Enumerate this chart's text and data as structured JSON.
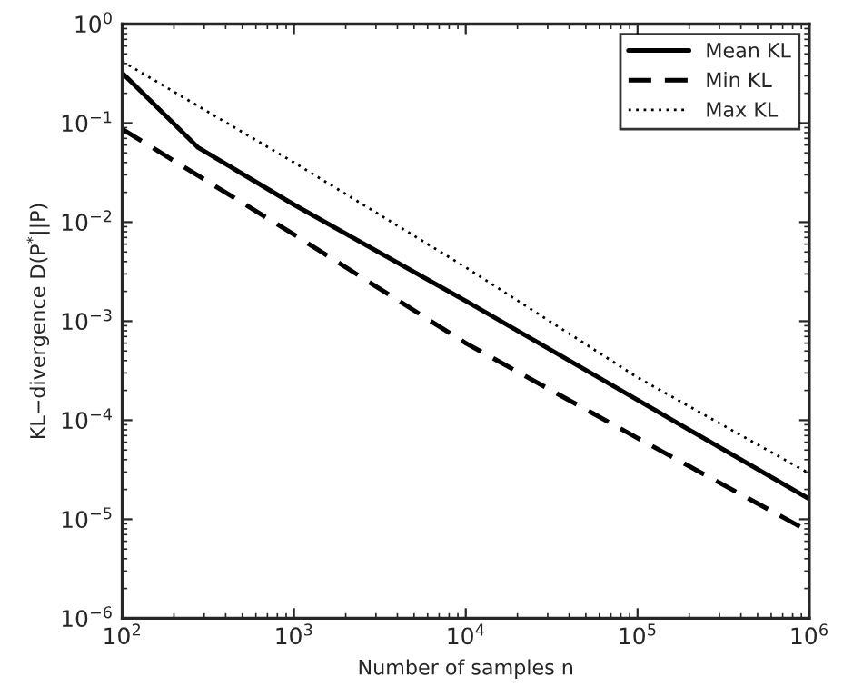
{
  "chart_data": {
    "type": "line",
    "xlabel": "Number of samples n",
    "ylabel": "KL−divergence D(P$^{*}$||P)",
    "log": "xy",
    "grid": false,
    "legend": "top right",
    "marker": "none",
    "xlim": [
      100,
      1000000
    ],
    "xticks": [
      {
        "value": 100,
        "label": "10$^{2}$"
      },
      {
        "value": 1000,
        "label": "10$^{3}$"
      },
      {
        "value": 10000,
        "label": "10$^{4}$"
      },
      {
        "value": 100000,
        "label": "10$^{5}$"
      },
      {
        "value": 1000000,
        "label": "10$^{6}$"
      }
    ],
    "ylim": [
      1e-06,
      1
    ],
    "yticks": [
      {
        "value": 1e-06,
        "label": "10$^{−6}$"
      },
      {
        "value": 1e-05,
        "label": "10$^{−5}$"
      },
      {
        "value": 0.0001,
        "label": "10$^{−4}$"
      },
      {
        "value": 0.001,
        "label": "10$^{−3}$"
      },
      {
        "value": 0.01,
        "label": "10$^{−2}$"
      },
      {
        "value": 0.1,
        "label": "10$^{−1}$"
      },
      {
        "value": 1,
        "label": "10$^{0}$"
      }
    ],
    "series": [
      {
        "name": "Mean KL",
        "color": "#000000",
        "line_style": "solid",
        "x": [
          100,
          275,
          1000,
          10000,
          100000,
          1000000
        ],
        "values": [
          0.32,
          0.057,
          0.015,
          0.0016,
          0.00016,
          1.6e-05
        ]
      },
      {
        "name": "Min KL",
        "color": "#000000",
        "line_style": "dashed",
        "x": [
          100,
          1000,
          10000,
          100000,
          1000000
        ],
        "values": [
          0.087,
          0.0075,
          0.0006,
          6.6e-05,
          7.5e-06
        ]
      },
      {
        "name": "Max KL",
        "color": "#000000",
        "line_style": "dotted",
        "x": [
          100,
          1000,
          10000,
          100000,
          1000000
        ],
        "values": [
          0.42,
          0.04,
          0.0035,
          0.00027,
          2.9e-05
        ]
      }
    ]
  }
}
